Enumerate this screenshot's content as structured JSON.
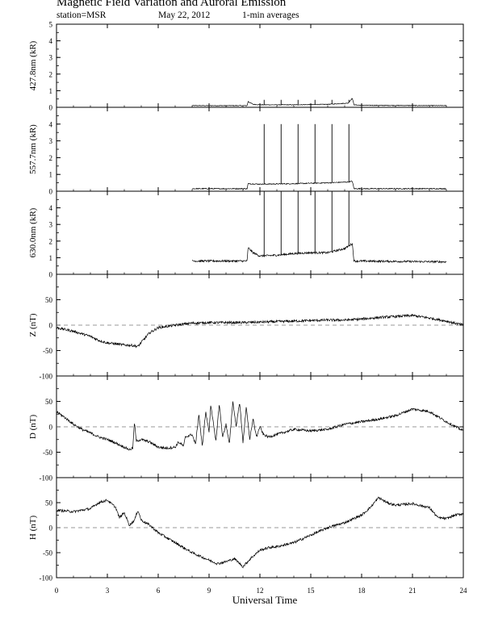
{
  "header": {
    "title": "Magnetic Field Variation and Auroral Emission",
    "station": "station=MSR",
    "date": "May 22, 2012",
    "averaging": "1-min averages"
  },
  "chart_data": {
    "type": "line",
    "title": "Magnetic Field Variation and Auroral Emission",
    "xlabel": "Universal Time",
    "xlim": [
      0,
      24
    ],
    "xticks": [
      0,
      3,
      6,
      9,
      12,
      15,
      18,
      21,
      24
    ],
    "panels": [
      {
        "id": "427",
        "ylabel": "427.8nm (kR)",
        "ylim": [
          0,
          5
        ],
        "yticks": [
          0,
          1,
          2,
          3,
          4,
          5
        ],
        "zero_line": false,
        "series": [
          {
            "x": [
              8,
              11.25,
              11.3,
              11.6,
              12,
              14,
              16,
              17.2,
              17.45,
              17.55,
              18,
              23
            ],
            "y": [
              0.1,
              0.1,
              0.35,
              0.18,
              0.15,
              0.15,
              0.18,
              0.25,
              0.55,
              0.15,
              0.12,
              0.1
            ]
          }
        ],
        "spikes": [
          {
            "x": 12.25,
            "y": 0.45
          },
          {
            "x": 13.25,
            "y": 0.45
          },
          {
            "x": 14.25,
            "y": 0.45
          },
          {
            "x": 15.25,
            "y": 0.45
          },
          {
            "x": 16.25,
            "y": 0.45
          },
          {
            "x": 17.25,
            "y": 0.45
          }
        ],
        "noise": 0.02
      },
      {
        "id": "557",
        "ylabel": "557.7nm (kR)",
        "ylim": [
          0,
          5
        ],
        "yticks": [
          0,
          1,
          2,
          3,
          4
        ],
        "zero_line": false,
        "series": [
          {
            "x": [
              8,
              11.25,
              11.3,
              12,
              14,
              16,
              17.2,
              17.45,
              17.55,
              23
            ],
            "y": [
              0.15,
              0.15,
              0.45,
              0.42,
              0.45,
              0.5,
              0.55,
              0.6,
              0.15,
              0.15
            ]
          }
        ],
        "spikes": [
          {
            "x": 12.25,
            "y": 4.0
          },
          {
            "x": 13.25,
            "y": 4.0
          },
          {
            "x": 14.25,
            "y": 4.0
          },
          {
            "x": 15.25,
            "y": 4.0
          },
          {
            "x": 16.25,
            "y": 4.0
          },
          {
            "x": 17.25,
            "y": 4.0
          }
        ],
        "noise": 0.03
      },
      {
        "id": "630",
        "ylabel": "630.0nm (kR)",
        "ylim": [
          0,
          5
        ],
        "yticks": [
          0,
          1,
          2,
          3,
          4
        ],
        "zero_line": false,
        "series": [
          {
            "x": [
              8,
              11.25,
              11.3,
              11.6,
              12,
              13,
              14,
              15,
              16,
              17,
              17.45,
              17.55,
              23
            ],
            "y": [
              0.8,
              0.8,
              1.6,
              1.3,
              1.1,
              1.15,
              1.25,
              1.3,
              1.3,
              1.55,
              1.85,
              0.8,
              0.75
            ]
          }
        ],
        "spikes": [
          {
            "x": 12.25,
            "y": 5.0
          },
          {
            "x": 13.25,
            "y": 5.0
          },
          {
            "x": 14.25,
            "y": 5.0
          },
          {
            "x": 15.25,
            "y": 5.0
          },
          {
            "x": 16.25,
            "y": 5.0
          },
          {
            "x": 17.25,
            "y": 5.0
          }
        ],
        "noise": 0.06
      },
      {
        "id": "Z",
        "ylabel": "Z (nT)",
        "ylim": [
          -100,
          100
        ],
        "yticks": [
          -100,
          -50,
          0,
          50
        ],
        "zero_line": true,
        "series": [
          {
            "x": [
              0,
              1,
              2,
              2.5,
              3,
              3.5,
              4,
              4.5,
              4.8,
              5.1,
              5.5,
              6,
              7,
              8,
              9,
              10,
              11,
              12,
              13,
              14,
              15,
              16,
              17,
              18,
              19,
              20,
              21,
              22,
              23,
              24
            ],
            "y": [
              -5,
              -12,
              -22,
              -30,
              -35,
              -37,
              -39,
              -40,
              -42,
              -30,
              -15,
              -5,
              0,
              4,
              5,
              5,
              5,
              6,
              7,
              8,
              9,
              10,
              10,
              12,
              15,
              17,
              19,
              14,
              8,
              0
            ]
          }
        ],
        "noise": 2.5
      },
      {
        "id": "D",
        "ylabel": "D (nT)",
        "ylim": [
          -100,
          100
        ],
        "yticks": [
          -100,
          -50,
          0,
          50
        ],
        "zero_line": true,
        "series": [
          {
            "x": [
              0,
              0.5,
              1,
              1.5,
              2,
              2.5,
              3,
              3.5,
              4,
              4.3,
              4.5,
              4.6,
              4.7,
              5,
              5.5,
              6,
              6.5,
              7,
              7.2,
              7.5,
              7.6,
              8,
              8.2,
              8.4,
              8.6,
              8.8,
              9,
              9.1,
              9.4,
              9.6,
              9.8,
              10,
              10.2,
              10.4,
              10.6,
              10.8,
              11,
              11.2,
              11.4,
              11.6,
              11.8,
              12,
              12.2,
              12.5,
              13,
              13.5,
              14,
              15,
              16,
              17,
              18,
              19,
              20,
              21,
              22,
              23,
              24
            ],
            "y": [
              30,
              18,
              5,
              -5,
              -12,
              -20,
              -25,
              -32,
              -40,
              -45,
              -42,
              10,
              -28,
              -25,
              -30,
              -40,
              -42,
              -40,
              -30,
              -38,
              -20,
              -15,
              -35,
              25,
              -40,
              30,
              -10,
              45,
              -30,
              45,
              -20,
              5,
              -35,
              50,
              0,
              50,
              -30,
              40,
              -25,
              15,
              -20,
              0,
              -15,
              -20,
              -15,
              -10,
              -5,
              -8,
              -5,
              5,
              10,
              15,
              22,
              35,
              30,
              10,
              -8
            ]
          }
        ],
        "noise": 2.5
      },
      {
        "id": "H",
        "ylabel": "H (nT)",
        "ylim": [
          -100,
          100
        ],
        "yticks": [
          -100,
          -50,
          0,
          50
        ],
        "zero_line": true,
        "series": [
          {
            "x": [
              0,
              1,
              2,
              2.5,
              3,
              3.5,
              3.7,
              4,
              4.3,
              4.6,
              4.8,
              5,
              5.5,
              6,
              7,
              8,
              9,
              9.5,
              10,
              10.5,
              11,
              11.5,
              12,
              12.5,
              13,
              14,
              15,
              16,
              17,
              18,
              18.5,
              19,
              19.5,
              20,
              21,
              22,
              22.5,
              23,
              23.5,
              24
            ],
            "y": [
              35,
              32,
              38,
              50,
              55,
              40,
              20,
              30,
              5,
              15,
              35,
              15,
              5,
              -10,
              -30,
              -50,
              -65,
              -72,
              -68,
              -62,
              -78,
              -60,
              -45,
              -40,
              -38,
              -30,
              -15,
              0,
              10,
              25,
              40,
              60,
              50,
              45,
              48,
              40,
              20,
              18,
              25,
              28
            ]
          }
        ],
        "noise": 2.5
      }
    ]
  }
}
